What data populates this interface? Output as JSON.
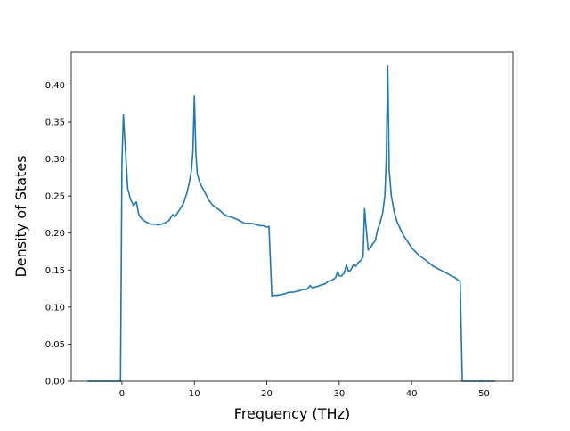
{
  "chart_data": {
    "type": "line",
    "title": "",
    "xlabel": "Frequency (THz)",
    "ylabel": "Density of States",
    "xlim": [
      -7.0,
      54.0
    ],
    "ylim": [
      0.0,
      0.445
    ],
    "x_ticks": [
      0,
      10,
      20,
      30,
      40,
      50
    ],
    "x_tick_labels": [
      "0",
      "10",
      "20",
      "30",
      "40",
      "50"
    ],
    "y_ticks": [
      0.0,
      0.05,
      0.1,
      0.15,
      0.2,
      0.25,
      0.3,
      0.35,
      0.4
    ],
    "y_tick_labels": [
      "0.00",
      "0.05",
      "0.10",
      "0.15",
      "0.20",
      "0.25",
      "0.30",
      "0.35",
      "0.40"
    ],
    "grid": false,
    "legend": "none",
    "series": [
      {
        "color": "#1f77b4",
        "x": [
          -4.7,
          -0.2,
          0.0,
          0.2,
          0.5,
          0.8,
          1.2,
          1.6,
          2.0,
          2.3,
          2.5,
          3.0,
          3.5,
          4.0,
          4.5,
          5.0,
          5.5,
          6.0,
          6.5,
          7.0,
          7.3,
          7.6,
          8.0,
          8.5,
          9.0,
          9.3,
          9.6,
          9.8,
          10.0,
          10.2,
          10.4,
          10.7,
          11.0,
          11.5,
          12.0,
          12.5,
          13.0,
          13.5,
          14.0,
          14.5,
          15.0,
          16.0,
          17.0,
          18.0,
          19.0,
          19.5,
          20.0,
          20.3,
          20.7,
          21.0,
          21.5,
          22.0,
          22.5,
          23.0,
          23.5,
          24.0,
          24.5,
          25.0,
          25.5,
          26.0,
          26.3,
          26.6,
          27.0,
          27.5,
          28.0,
          28.5,
          29.0,
          29.5,
          29.8,
          30.0,
          30.3,
          30.7,
          31.0,
          31.3,
          31.6,
          32.0,
          32.3,
          32.6,
          33.0,
          33.3,
          33.5,
          33.7,
          34.0,
          34.3,
          34.6,
          35.0,
          35.3,
          35.6,
          36.0,
          36.3,
          36.5,
          36.7,
          36.9,
          37.2,
          37.6,
          38.0,
          38.5,
          39.0,
          40.0,
          41.0,
          42.0,
          43.0,
          44.0,
          45.0,
          45.5,
          46.0,
          46.3,
          46.5,
          46.7,
          47.0,
          51.5
        ],
        "y": [
          0.0,
          0.0,
          0.295,
          0.36,
          0.31,
          0.26,
          0.245,
          0.237,
          0.242,
          0.226,
          0.222,
          0.217,
          0.214,
          0.212,
          0.212,
          0.211,
          0.212,
          0.214,
          0.217,
          0.225,
          0.222,
          0.226,
          0.232,
          0.24,
          0.255,
          0.268,
          0.285,
          0.31,
          0.385,
          0.31,
          0.28,
          0.27,
          0.263,
          0.254,
          0.244,
          0.238,
          0.234,
          0.231,
          0.226,
          0.223,
          0.222,
          0.218,
          0.213,
          0.213,
          0.21,
          0.21,
          0.208,
          0.209,
          0.114,
          0.116,
          0.116,
          0.117,
          0.118,
          0.12,
          0.12,
          0.121,
          0.122,
          0.124,
          0.124,
          0.129,
          0.126,
          0.127,
          0.128,
          0.13,
          0.131,
          0.135,
          0.136,
          0.14,
          0.148,
          0.142,
          0.142,
          0.146,
          0.157,
          0.148,
          0.15,
          0.158,
          0.155,
          0.16,
          0.163,
          0.168,
          0.233,
          0.21,
          0.177,
          0.18,
          0.185,
          0.19,
          0.205,
          0.212,
          0.227,
          0.25,
          0.3,
          0.426,
          0.285,
          0.25,
          0.228,
          0.215,
          0.204,
          0.195,
          0.18,
          0.17,
          0.163,
          0.155,
          0.15,
          0.145,
          0.142,
          0.14,
          0.137,
          0.136,
          0.135,
          0.0,
          0.0
        ]
      }
    ]
  }
}
